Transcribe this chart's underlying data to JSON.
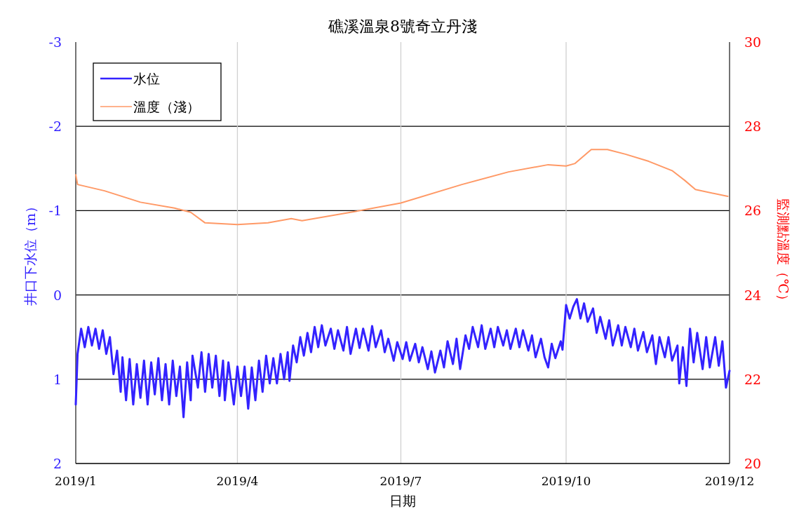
{
  "chart_data": {
    "type": "line",
    "title": "礁溪溫泉8號奇立丹淺",
    "xlabel": "日期",
    "ylabel": "井口下水位（m）",
    "y2label": "監測點溫度（℃）",
    "xlim": [
      "2019-01-01",
      "2019-12-31"
    ],
    "xticks": [
      {
        "value": "2019-01-01",
        "label": "2019/1"
      },
      {
        "value": "2019-04-01",
        "label": "2019/4"
      },
      {
        "value": "2019-07-01",
        "label": "2019/7"
      },
      {
        "value": "2019-10-01",
        "label": "2019/10"
      },
      {
        "value": "2019-12-31",
        "label": "2019/12"
      }
    ],
    "ylim": [
      2,
      -3
    ],
    "yticks": [
      -3,
      -2,
      -1,
      0,
      1,
      2
    ],
    "y2lim": [
      20,
      30
    ],
    "y2ticks": [
      20,
      22,
      24,
      26,
      28,
      30
    ],
    "grid": true,
    "legend": "top left",
    "line_style": "solid",
    "series": [
      {
        "name": "水位",
        "color": "#3322ff",
        "axis": "y",
        "x": [
          "2019-01-01",
          "2019-01-02",
          "2019-01-04",
          "2019-01-06",
          "2019-01-08",
          "2019-01-10",
          "2019-01-12",
          "2019-01-14",
          "2019-01-16",
          "2019-01-18",
          "2019-01-20",
          "2019-01-22",
          "2019-01-24",
          "2019-01-26",
          "2019-01-27",
          "2019-01-29",
          "2019-01-31",
          "2019-02-02",
          "2019-02-04",
          "2019-02-06",
          "2019-02-08",
          "2019-02-10",
          "2019-02-12",
          "2019-02-14",
          "2019-02-16",
          "2019-02-18",
          "2019-02-20",
          "2019-02-22",
          "2019-02-24",
          "2019-02-26",
          "2019-02-28",
          "2019-03-02",
          "2019-03-04",
          "2019-03-06",
          "2019-03-07",
          "2019-03-10",
          "2019-03-12",
          "2019-03-14",
          "2019-03-16",
          "2019-03-18",
          "2019-03-20",
          "2019-03-22",
          "2019-03-24",
          "2019-03-25",
          "2019-03-27",
          "2019-03-30",
          "2019-04-01",
          "2019-04-03",
          "2019-04-05",
          "2019-04-07",
          "2019-04-09",
          "2019-04-11",
          "2019-04-13",
          "2019-04-15",
          "2019-04-17",
          "2019-04-19",
          "2019-04-21",
          "2019-04-23",
          "2019-04-25",
          "2019-04-27",
          "2019-04-29",
          "2019-04-30",
          "2019-05-02",
          "2019-05-04",
          "2019-05-06",
          "2019-05-08",
          "2019-05-10",
          "2019-05-12",
          "2019-05-14",
          "2019-05-16",
          "2019-05-18",
          "2019-05-20",
          "2019-05-23",
          "2019-05-25",
          "2019-05-27",
          "2019-05-30",
          "2019-06-01",
          "2019-06-03",
          "2019-06-06",
          "2019-06-08",
          "2019-06-10",
          "2019-06-13",
          "2019-06-15",
          "2019-06-17",
          "2019-06-20",
          "2019-06-22",
          "2019-06-24",
          "2019-06-27",
          "2019-06-29",
          "2019-07-02",
          "2019-07-04",
          "2019-07-06",
          "2019-07-09",
          "2019-07-11",
          "2019-07-13",
          "2019-07-16",
          "2019-07-18",
          "2019-07-20",
          "2019-07-23",
          "2019-07-25",
          "2019-07-27",
          "2019-07-30",
          "2019-08-01",
          "2019-08-03",
          "2019-08-06",
          "2019-08-08",
          "2019-08-10",
          "2019-08-13",
          "2019-08-15",
          "2019-08-17",
          "2019-08-20",
          "2019-08-22",
          "2019-08-24",
          "2019-08-27",
          "2019-08-29",
          "2019-08-31",
          "2019-09-03",
          "2019-09-05",
          "2019-09-07",
          "2019-09-10",
          "2019-09-12",
          "2019-09-14",
          "2019-09-17",
          "2019-09-19",
          "2019-09-21",
          "2019-09-23",
          "2019-09-25",
          "2019-09-28",
          "2019-09-29",
          "2019-10-01",
          "2019-10-03",
          "2019-10-05",
          "2019-10-07",
          "2019-10-09",
          "2019-10-11",
          "2019-10-13",
          "2019-10-16",
          "2019-10-18",
          "2019-10-20",
          "2019-10-23",
          "2019-10-25",
          "2019-10-27",
          "2019-10-30",
          "2019-11-01",
          "2019-11-03",
          "2019-11-06",
          "2019-11-08",
          "2019-11-10",
          "2019-11-13",
          "2019-11-15",
          "2019-11-18",
          "2019-11-20",
          "2019-11-22",
          "2019-11-25",
          "2019-11-27",
          "2019-11-29",
          "2019-12-02",
          "2019-12-03",
          "2019-12-05",
          "2019-12-07",
          "2019-12-09",
          "2019-12-11",
          "2019-12-13",
          "2019-12-16",
          "2019-12-18",
          "2019-12-20",
          "2019-12-23",
          "2019-12-25",
          "2019-12-27",
          "2019-12-29",
          "2019-12-31"
        ],
        "values": [
          1.3,
          0.7,
          0.4,
          0.62,
          0.38,
          0.6,
          0.4,
          0.64,
          0.42,
          0.7,
          0.5,
          0.94,
          0.66,
          1.15,
          0.74,
          1.25,
          0.76,
          1.3,
          0.82,
          1.22,
          0.78,
          1.3,
          0.8,
          1.18,
          0.75,
          1.25,
          0.82,
          1.3,
          0.78,
          1.2,
          0.85,
          1.45,
          0.8,
          1.25,
          0.72,
          1.1,
          0.68,
          1.15,
          0.7,
          1.1,
          0.72,
          1.2,
          0.78,
          1.25,
          0.8,
          1.3,
          0.85,
          1.2,
          0.85,
          1.35,
          0.86,
          1.25,
          0.78,
          1.15,
          0.72,
          1.05,
          0.75,
          1.05,
          0.7,
          1.0,
          0.68,
          1.02,
          0.6,
          0.8,
          0.5,
          0.72,
          0.45,
          0.68,
          0.38,
          0.62,
          0.36,
          0.6,
          0.4,
          0.64,
          0.42,
          0.66,
          0.38,
          0.7,
          0.4,
          0.63,
          0.4,
          0.66,
          0.37,
          0.62,
          0.42,
          0.68,
          0.52,
          0.78,
          0.56,
          0.76,
          0.56,
          0.78,
          0.58,
          0.8,
          0.62,
          0.88,
          0.67,
          0.92,
          0.66,
          0.86,
          0.55,
          0.82,
          0.52,
          0.88,
          0.48,
          0.64,
          0.38,
          0.62,
          0.36,
          0.64,
          0.4,
          0.62,
          0.38,
          0.6,
          0.42,
          0.64,
          0.4,
          0.62,
          0.42,
          0.66,
          0.48,
          0.74,
          0.52,
          0.74,
          0.86,
          0.58,
          0.75,
          0.55,
          0.65,
          0.12,
          0.28,
          0.14,
          0.05,
          0.28,
          0.1,
          0.32,
          0.16,
          0.45,
          0.26,
          0.52,
          0.3,
          0.6,
          0.36,
          0.6,
          0.38,
          0.62,
          0.4,
          0.66,
          0.44,
          0.68,
          0.48,
          0.82,
          0.5,
          0.74,
          0.5,
          0.78,
          0.6,
          1.05,
          0.62,
          1.08,
          0.4,
          0.8,
          0.45,
          0.88,
          0.5,
          0.86,
          0.5,
          0.84,
          0.55,
          1.1,
          0.9
        ]
      },
      {
        "name": "溫度（淺）",
        "color": "#ff9966",
        "axis": "y2",
        "x": [
          "2019-01-01",
          "2019-01-02",
          "2019-01-17",
          "2019-02-06",
          "2019-02-25",
          "2019-03-06",
          "2019-03-14",
          "2019-04-01",
          "2019-04-18",
          "2019-05-01",
          "2019-05-07",
          "2019-06-03",
          "2019-07-01",
          "2019-08-04",
          "2019-08-30",
          "2019-09-21",
          "2019-10-01",
          "2019-10-06",
          "2019-10-15",
          "2019-10-24",
          "2019-11-03",
          "2019-11-16",
          "2019-11-29",
          "2019-12-06",
          "2019-12-12",
          "2019-12-30"
        ],
        "values": [
          26.85,
          26.62,
          26.47,
          26.2,
          26.06,
          25.96,
          25.71,
          25.67,
          25.71,
          25.81,
          25.76,
          25.96,
          26.18,
          26.62,
          26.92,
          27.09,
          27.06,
          27.12,
          27.45,
          27.45,
          27.34,
          27.17,
          26.95,
          26.72,
          26.5,
          26.34
        ]
      }
    ]
  }
}
